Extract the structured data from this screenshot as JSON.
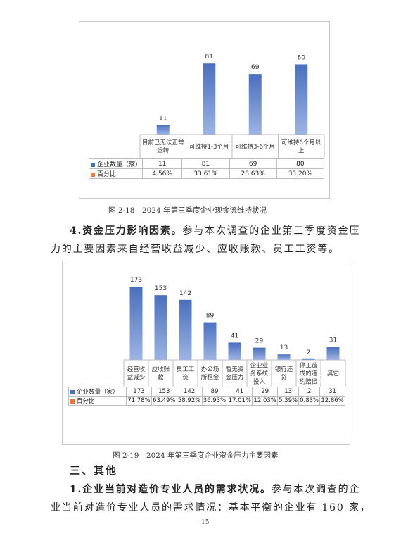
{
  "chart_data": [
    {
      "type": "bar",
      "categories": [
        "目前已无法正常运转",
        "可维持1-3个月",
        "可维持3-6个月",
        "可维持6个月以上"
      ],
      "series": [
        {
          "name": "企业数量（家）",
          "values": [
            11,
            81,
            69,
            80
          ]
        },
        {
          "name": "百分比",
          "values": [
            "4.56%",
            "33.61%",
            "28.63%",
            "33.20%"
          ]
        }
      ],
      "ylim": [
        0,
        90
      ],
      "grid": false,
      "colors": {
        "bar": "#5b7fc7",
        "legend_count": "#4472c4",
        "legend_pct": "#ed7d31"
      }
    },
    {
      "type": "bar",
      "categories": [
        "经营收益减少",
        "应收账款",
        "员工工资",
        "办公场所租金",
        "暂无资金压力",
        "企业业务系统投入",
        "银行还贷",
        "停工造成的违约赔偿",
        "其它"
      ],
      "series": [
        {
          "name": "企业数量（家）",
          "values": [
            173,
            153,
            142,
            89,
            41,
            29,
            13,
            2,
            31
          ]
        },
        {
          "name": "百分比",
          "values": [
            "71.78%",
            "63.49%",
            "58.92%",
            "36.93%",
            "17.01%",
            "12.03%",
            "5.39%",
            "0.83%",
            "12.86%"
          ]
        }
      ],
      "ylim": [
        0,
        180
      ],
      "grid": false,
      "colors": {
        "bar": "#5b7fc7",
        "legend_count": "#4472c4",
        "legend_pct": "#ed7d31"
      }
    }
  ],
  "chart1": {
    "cat_lines": [
      [
        "目前已无法正常",
        "运转"
      ],
      [
        "可维持1-3个月"
      ],
      [
        "可维持3-6个月"
      ],
      [
        "可维持6个月以",
        "上"
      ]
    ],
    "row1_label": "企业数量（家）",
    "row2_label": "百分比",
    "caption": "图 2-18　2024 年第三季度企业现金流维持状况"
  },
  "chart2": {
    "cat_lines": [
      [
        "经营收",
        "益减少"
      ],
      [
        "应收账",
        "款"
      ],
      [
        "员工工",
        "资"
      ],
      [
        "办公场",
        "所租金"
      ],
      [
        "暂无资",
        "金压力"
      ],
      [
        "企业业",
        "务系统",
        "投入"
      ],
      [
        "银行还",
        "贷"
      ],
      [
        "停工造",
        "成的违",
        "约赔偿"
      ],
      [
        "其它"
      ]
    ],
    "row1_label": "企业数量（家）",
    "row2_label": "百分比",
    "caption": "图 2-19　2024 年第三季度企业资金压力主要因素"
  },
  "text": {
    "para1_bold": "4.资金压力影响因素。",
    "para1_rest": "参与本次调查的企业第三季度资金压",
    "para1_line2": "力的主要因素来自经营收益减少、应收账款、员工工资等。",
    "section_heading": "三、其他",
    "para2_bold": "1.企业当前对造价专业人员的需求状况。",
    "para2_rest": "参与本次调查的企",
    "para2_line2": "业当前对造价专业人员的需求情况：基本平衡的企业有 160 家，",
    "page_number": "15"
  }
}
